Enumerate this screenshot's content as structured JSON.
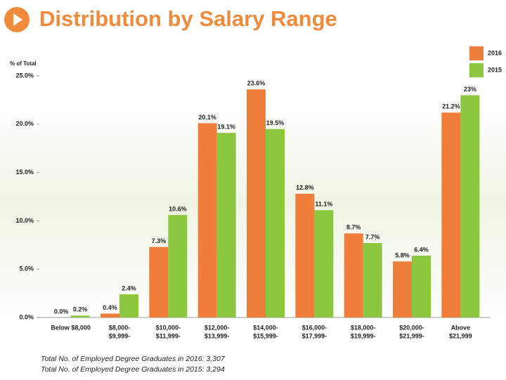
{
  "chart_data": {
    "type": "bar",
    "title": "Distribution by Salary Range",
    "y_label": "% of Total",
    "categories": [
      [
        "Below $8,000"
      ],
      [
        "$8,000-",
        "$9,999-"
      ],
      [
        "$10,000-",
        "$11,999-"
      ],
      [
        "$12,000-",
        "$13,999-"
      ],
      [
        "$14,000-",
        "$15,999-"
      ],
      [
        "$16,000-",
        "$17,999-"
      ],
      [
        "$18,000-",
        "$19,999-"
      ],
      [
        "$20,000-",
        "$21,999-"
      ],
      [
        "Above",
        "$21,999"
      ]
    ],
    "series": [
      {
        "name": "2016",
        "color": "#f07e3b",
        "values": [
          0.0,
          0.4,
          7.3,
          20.1,
          23.6,
          12.8,
          8.7,
          5.8,
          21.2
        ],
        "value_labels": [
          "0.0%",
          "0.4%",
          "7.3%",
          "20.1%",
          "23.6%",
          "12.8%",
          "8.7%",
          "5.8%",
          "21.2%"
        ]
      },
      {
        "name": "2015",
        "color": "#8dc63f",
        "values": [
          0.2,
          2.4,
          10.6,
          19.1,
          19.5,
          11.1,
          7.7,
          6.4,
          23
        ],
        "value_labels": [
          "0.2%",
          "2.4%",
          "10.6%",
          "19.1%",
          "19.5%",
          "11.1%",
          "7.7%",
          "6.4%",
          "23%"
        ]
      }
    ],
    "ylim": [
      0,
      25
    ],
    "yticks": [
      {
        "value": 0,
        "label": "0.0%"
      },
      {
        "value": 5,
        "label": "5.0%"
      },
      {
        "value": 10,
        "label": "10.0%"
      },
      {
        "value": 15,
        "label": "15.0%"
      },
      {
        "value": 20,
        "label": "20.0%"
      },
      {
        "value": 25,
        "label": "25.0%"
      }
    ],
    "legend": "top-right",
    "footnotes": [
      "Total No. of Employed Degree Graduates in 2016: 3,307",
      "Total No. of Employed Degree Graduates in 2015: 3,294"
    ]
  }
}
